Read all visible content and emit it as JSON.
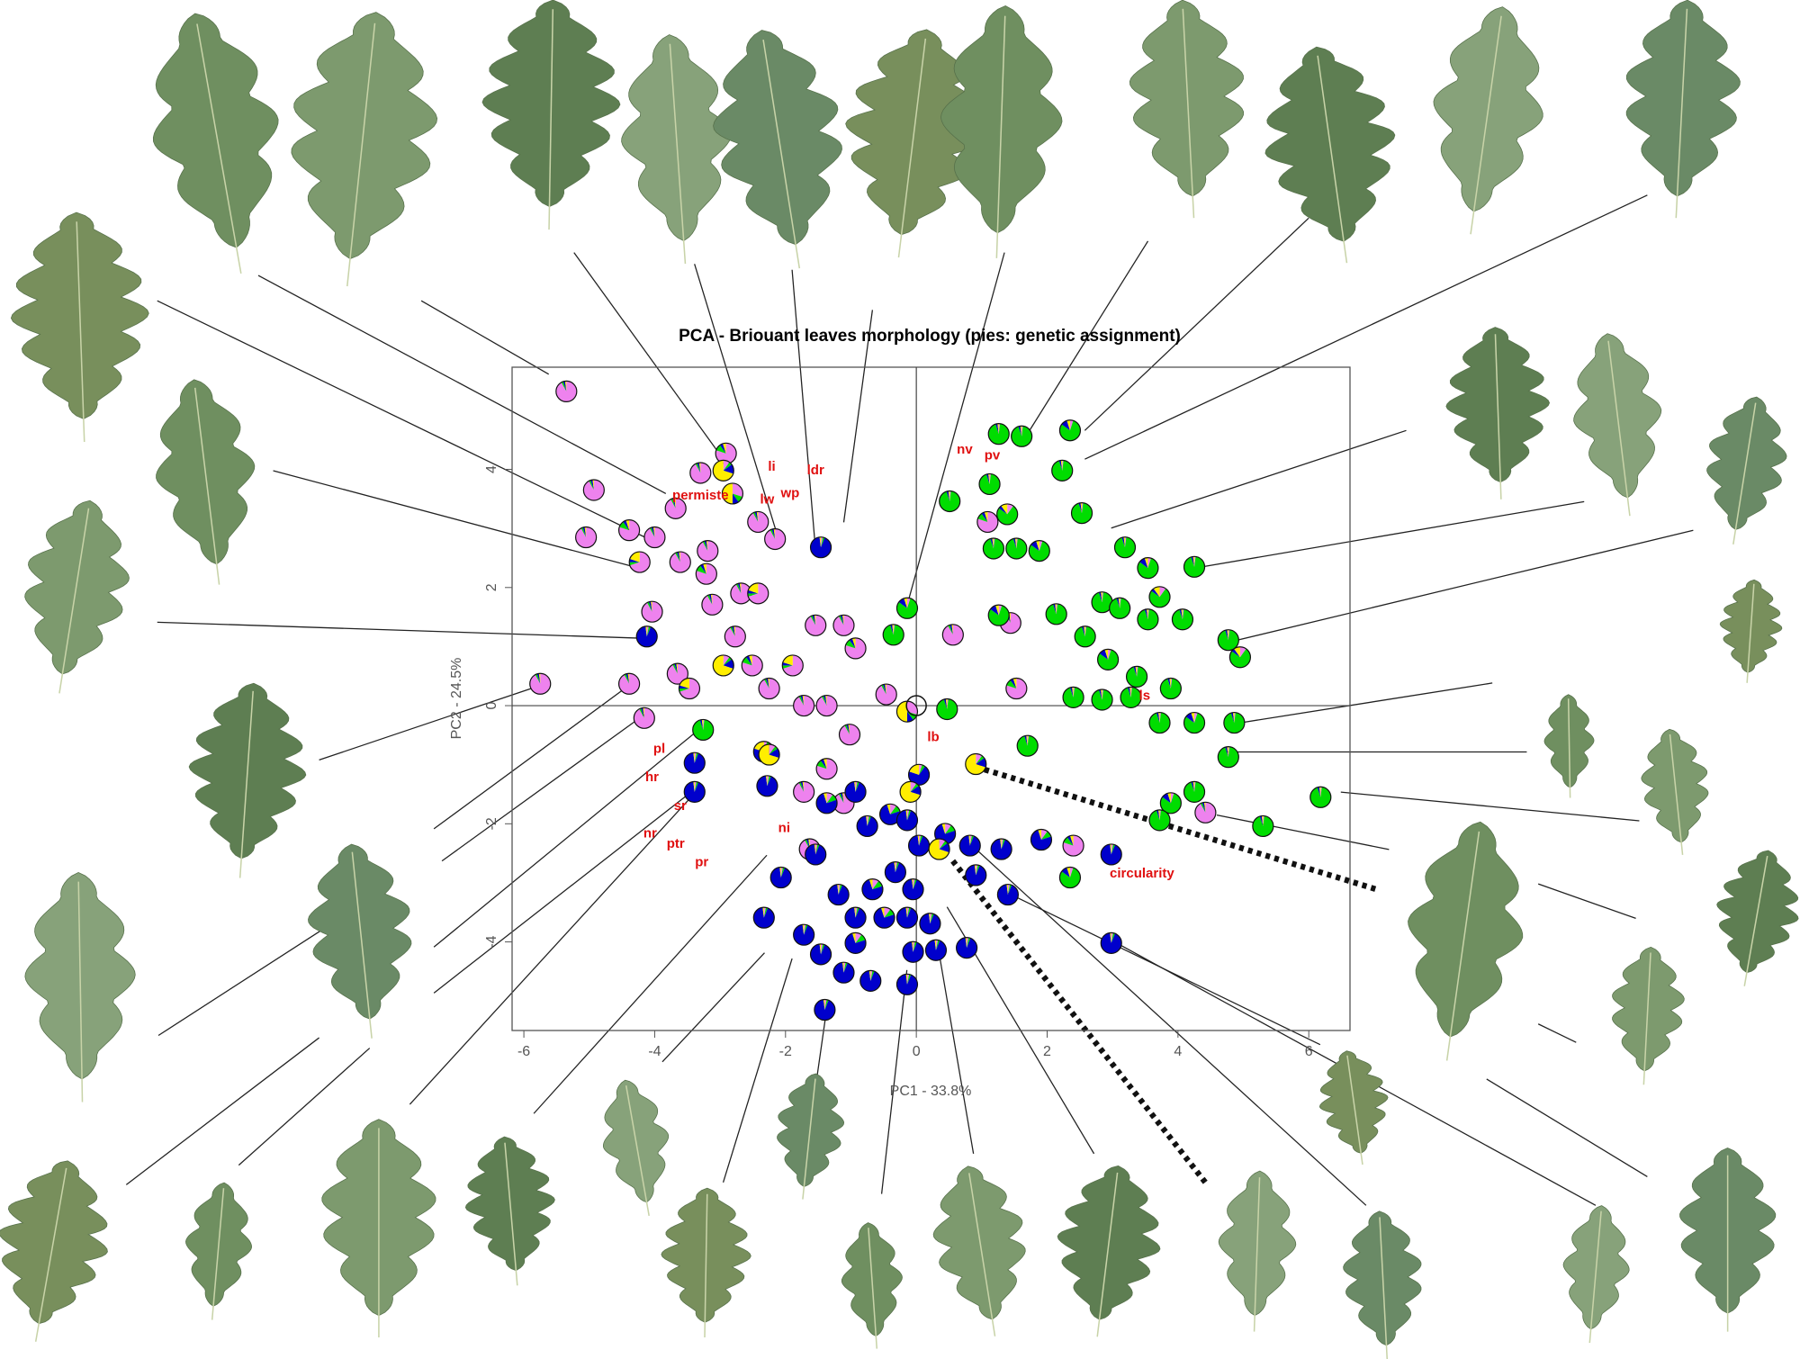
{
  "chart_data": {
    "type": "pie-scatter",
    "title": "PCA - Briouant leaves morphology (pies: genetic assignment)",
    "x_label": "PC1 - 33.8%",
    "y_label": "PC2 - 24.5%",
    "xlim": [
      -6.18,
      6.63
    ],
    "ylim": [
      -5.5,
      5.73
    ],
    "xticks": [
      -6,
      -4,
      -2,
      0,
      2,
      4,
      6
    ],
    "yticks": [
      -4,
      -2,
      0,
      2,
      4
    ],
    "pie_colors": [
      "#ee82ee",
      "#00dd00",
      "#0000cc",
      "#ffee00"
    ],
    "x": [
      -5.35,
      -4.93,
      -5.05,
      -4.39,
      -4.0,
      -3.68,
      -4.04,
      -4.23,
      -3.61,
      -3.19,
      -3.21,
      -3.12,
      -2.68,
      -2.42,
      -3.3,
      -2.91,
      -2.42,
      -2.16,
      -3.65,
      -3.47,
      -2.77,
      -2.51,
      -2.25,
      -1.89,
      -1.54,
      -1.11,
      -0.93,
      -1.72,
      -1.37,
      -1.02,
      -0.46,
      0.56,
      -5.75,
      -4.39,
      -4.16,
      1.53,
      1.44,
      1.09,
      4.42,
      2.4,
      -1.72,
      -1.37,
      -1.63,
      -1.11,
      1.26,
      1.61,
      2.35,
      2.23,
      0.51,
      1.12,
      1.39,
      1.18,
      1.53,
      1.88,
      2.53,
      3.19,
      3.54,
      4.25,
      4.07,
      4.77,
      4.95,
      3.54,
      2.84,
      2.58,
      2.93,
      3.37,
      3.89,
      3.72,
      4.25,
      4.86,
      4.77,
      6.18,
      5.3,
      4.25,
      3.89,
      3.72,
      2.4,
      2.84,
      3.28,
      1.7,
      1.26,
      2.14,
      3.11,
      3.72,
      -0.14,
      -0.35,
      -3.26,
      0.47,
      2.35,
      -4.12,
      -3.39,
      -3.39,
      -2.33,
      -2.28,
      -1.37,
      -0.93,
      -1.54,
      -0.75,
      -0.4,
      0.04,
      -0.14,
      0.04,
      0.44,
      0.82,
      1.3,
      1.91,
      2.98,
      0.91,
      -1.46,
      1.4,
      2.98,
      -0.32,
      -0.67,
      -0.05,
      -1.19,
      -2.07,
      -2.33,
      -1.72,
      -0.93,
      -0.49,
      -0.14,
      0.21,
      0.3,
      0.77,
      -0.05,
      -1.46,
      -0.93,
      -1.11,
      -0.7,
      -0.14,
      -1.4,
      -2.95,
      -2.81,
      -2.95,
      -2.25,
      -0.09,
      0.91,
      0.35,
      -0.14
    ],
    "y": [
      5.32,
      3.65,
      2.85,
      2.97,
      2.85,
      3.34,
      1.59,
      2.43,
      2.43,
      2.62,
      2.23,
      1.71,
      1.9,
      1.9,
      3.94,
      4.27,
      3.11,
      2.82,
      0.54,
      0.29,
      1.17,
      0.68,
      0.29,
      0.68,
      1.36,
      1.36,
      0.97,
      0,
      0,
      -0.49,
      0.19,
      1.2,
      0.37,
      0.37,
      -0.21,
      0.29,
      1.4,
      3.11,
      -1.81,
      -2.37,
      -1.46,
      -1.07,
      -2.43,
      -1.65,
      4.6,
      4.56,
      4.66,
      3.98,
      3.46,
      3.75,
      3.24,
      2.66,
      2.66,
      2.62,
      3.26,
      2.68,
      2.33,
      2.35,
      1.46,
      1.11,
      0.82,
      1.46,
      1.75,
      1.17,
      0.78,
      0.49,
      0.29,
      -0.29,
      -0.29,
      -0.29,
      -0.87,
      -1.55,
      -2.04,
      -1.46,
      -1.65,
      -1.94,
      0.14,
      0.1,
      0.14,
      -0.68,
      1.53,
      1.55,
      1.65,
      1.84,
      1.65,
      1.2,
      -0.41,
      -0.06,
      -2.91,
      1.17,
      -0.97,
      -1.46,
      -0.78,
      -1.36,
      -1.65,
      -1.46,
      -2.52,
      -2.04,
      -1.84,
      -1.17,
      -1.94,
      -2.37,
      -2.17,
      -2.37,
      -2.43,
      -2.27,
      -2.52,
      -2.87,
      2.68,
      -3.2,
      -4.02,
      -2.82,
      -3.11,
      -3.11,
      -3.2,
      -2.91,
      -3.59,
      -3.88,
      -3.59,
      -3.59,
      -3.59,
      -3.69,
      -4.14,
      -4.1,
      -4.17,
      -4.21,
      -4.02,
      -4.52,
      -4.66,
      -4.72,
      -5.15,
      3.98,
      3.59,
      0.68,
      -0.83,
      -1.46,
      -0.99,
      -2.43,
      -0.1
    ],
    "pies": [
      [
        0.92,
        0.03,
        0.03,
        0.02
      ],
      [
        0.92,
        0.03,
        0.03,
        0.02
      ],
      [
        0.92,
        0.03,
        0.03,
        0.02
      ],
      [
        0.8,
        0.1,
        0.05,
        0.05
      ],
      [
        0.92,
        0.03,
        0.03,
        0.02
      ],
      [
        0.92,
        0.03,
        0.03,
        0.02
      ],
      [
        0.92,
        0.03,
        0.03,
        0.02
      ],
      [
        0.7,
        0.05,
        0.05,
        0.2
      ],
      [
        0.92,
        0.03,
        0.03,
        0.02
      ],
      [
        0.92,
        0.03,
        0.03,
        0.02
      ],
      [
        0.8,
        0.1,
        0.05,
        0.05
      ],
      [
        0.92,
        0.03,
        0.03,
        0.02
      ],
      [
        0.92,
        0.03,
        0.03,
        0.02
      ],
      [
        0.7,
        0.05,
        0.05,
        0.2
      ],
      [
        0.92,
        0.03,
        0.03,
        0.02
      ],
      [
        0.8,
        0.1,
        0.05,
        0.05
      ],
      [
        0.92,
        0.03,
        0.03,
        0.02
      ],
      [
        0.92,
        0.03,
        0.03,
        0.02
      ],
      [
        0.92,
        0.03,
        0.03,
        0.02
      ],
      [
        0.7,
        0.05,
        0.05,
        0.2
      ],
      [
        0.92,
        0.03,
        0.03,
        0.02
      ],
      [
        0.8,
        0.1,
        0.05,
        0.05
      ],
      [
        0.92,
        0.03,
        0.03,
        0.02
      ],
      [
        0.7,
        0.05,
        0.05,
        0.2
      ],
      [
        0.92,
        0.03,
        0.03,
        0.02
      ],
      [
        0.92,
        0.03,
        0.03,
        0.02
      ],
      [
        0.8,
        0.1,
        0.05,
        0.05
      ],
      [
        0.92,
        0.03,
        0.03,
        0.02
      ],
      [
        0.92,
        0.03,
        0.03,
        0.02
      ],
      [
        0.92,
        0.03,
        0.03,
        0.02
      ],
      [
        0.92,
        0.03,
        0.03,
        0.02
      ],
      [
        0.92,
        0.03,
        0.03,
        0.02
      ],
      [
        0.92,
        0.03,
        0.03,
        0.02
      ],
      [
        0.92,
        0.03,
        0.03,
        0.02
      ],
      [
        0.92,
        0.03,
        0.03,
        0.02
      ],
      [
        0.8,
        0.1,
        0.05,
        0.05
      ],
      [
        0.92,
        0.03,
        0.03,
        0.02
      ],
      [
        0.8,
        0.1,
        0.05,
        0.05
      ],
      [
        0.92,
        0.03,
        0.03,
        0.02
      ],
      [
        0.8,
        0.1,
        0.05,
        0.05
      ],
      [
        0.92,
        0.03,
        0.03,
        0.02
      ],
      [
        0.8,
        0.1,
        0.05,
        0.05
      ],
      [
        0.92,
        0.03,
        0.03,
        0.02
      ],
      [
        0.92,
        0.03,
        0.03,
        0.02
      ],
      [
        0.02,
        0.93,
        0.03,
        0.02
      ],
      [
        0.02,
        0.93,
        0.03,
        0.02
      ],
      [
        0.05,
        0.8,
        0.1,
        0.05
      ],
      [
        0.02,
        0.93,
        0.03,
        0.02
      ],
      [
        0.02,
        0.93,
        0.03,
        0.02
      ],
      [
        0.02,
        0.93,
        0.03,
        0.02
      ],
      [
        0.1,
        0.75,
        0.05,
        0.1
      ],
      [
        0.02,
        0.93,
        0.03,
        0.02
      ],
      [
        0.02,
        0.93,
        0.03,
        0.02
      ],
      [
        0.05,
        0.8,
        0.1,
        0.05
      ],
      [
        0.02,
        0.93,
        0.03,
        0.02
      ],
      [
        0.02,
        0.93,
        0.03,
        0.02
      ],
      [
        0.05,
        0.8,
        0.1,
        0.05
      ],
      [
        0.02,
        0.93,
        0.03,
        0.02
      ],
      [
        0.02,
        0.93,
        0.03,
        0.02
      ],
      [
        0.02,
        0.93,
        0.03,
        0.02
      ],
      [
        0.1,
        0.75,
        0.05,
        0.1
      ],
      [
        0.02,
        0.93,
        0.03,
        0.02
      ],
      [
        0.02,
        0.93,
        0.03,
        0.02
      ],
      [
        0.02,
        0.93,
        0.03,
        0.02
      ],
      [
        0.05,
        0.8,
        0.1,
        0.05
      ],
      [
        0.02,
        0.93,
        0.03,
        0.02
      ],
      [
        0.02,
        0.93,
        0.03,
        0.02
      ],
      [
        0.02,
        0.93,
        0.03,
        0.02
      ],
      [
        0.05,
        0.8,
        0.1,
        0.05
      ],
      [
        0.02,
        0.93,
        0.03,
        0.02
      ],
      [
        0.02,
        0.93,
        0.03,
        0.02
      ],
      [
        0.02,
        0.93,
        0.03,
        0.02
      ],
      [
        0.02,
        0.93,
        0.03,
        0.02
      ],
      [
        0.02,
        0.93,
        0.03,
        0.02
      ],
      [
        0.05,
        0.8,
        0.1,
        0.05
      ],
      [
        0.02,
        0.93,
        0.03,
        0.02
      ],
      [
        0.02,
        0.93,
        0.03,
        0.02
      ],
      [
        0.02,
        0.93,
        0.03,
        0.02
      ],
      [
        0.02,
        0.93,
        0.03,
        0.02
      ],
      [
        0.02,
        0.93,
        0.03,
        0.02
      ],
      [
        0.05,
        0.8,
        0.1,
        0.05
      ],
      [
        0.02,
        0.93,
        0.03,
        0.02
      ],
      [
        0.02,
        0.93,
        0.03,
        0.02
      ],
      [
        0.1,
        0.75,
        0.05,
        0.1
      ],
      [
        0.05,
        0.8,
        0.1,
        0.05
      ],
      [
        0.02,
        0.93,
        0.03,
        0.02
      ],
      [
        0.02,
        0.93,
        0.03,
        0.02
      ],
      [
        0.02,
        0.93,
        0.03,
        0.02
      ],
      [
        0.05,
        0.8,
        0.1,
        0.05
      ],
      [
        0.03,
        0.03,
        0.92,
        0.02
      ],
      [
        0.03,
        0.03,
        0.92,
        0.02
      ],
      [
        0.03,
        0.03,
        0.92,
        0.02
      ],
      [
        0.05,
        0.05,
        0.7,
        0.2
      ],
      [
        0.03,
        0.03,
        0.92,
        0.02
      ],
      [
        0.1,
        0.1,
        0.75,
        0.05
      ],
      [
        0.03,
        0.03,
        0.92,
        0.02
      ],
      [
        0.03,
        0.03,
        0.92,
        0.02
      ],
      [
        0.03,
        0.03,
        0.92,
        0.02
      ],
      [
        0.1,
        0.1,
        0.75,
        0.05
      ],
      [
        0.05,
        0.05,
        0.7,
        0.2
      ],
      [
        0.03,
        0.03,
        0.92,
        0.02
      ],
      [
        0.03,
        0.03,
        0.92,
        0.02
      ],
      [
        0.1,
        0.1,
        0.75,
        0.05
      ],
      [
        0.03,
        0.03,
        0.92,
        0.02
      ],
      [
        0.03,
        0.03,
        0.92,
        0.02
      ],
      [
        0.1,
        0.1,
        0.75,
        0.05
      ],
      [
        0.03,
        0.03,
        0.92,
        0.02
      ],
      [
        0.03,
        0.03,
        0.92,
        0.02
      ],
      [
        0.03,
        0.03,
        0.92,
        0.02
      ],
      [
        0.03,
        0.03,
        0.92,
        0.02
      ],
      [
        0.03,
        0.03,
        0.92,
        0.02
      ],
      [
        0.03,
        0.03,
        0.92,
        0.02
      ],
      [
        0.1,
        0.1,
        0.75,
        0.05
      ],
      [
        0.03,
        0.03,
        0.92,
        0.02
      ],
      [
        0.03,
        0.03,
        0.92,
        0.02
      ],
      [
        0.03,
        0.03,
        0.92,
        0.02
      ],
      [
        0.03,
        0.03,
        0.92,
        0.02
      ],
      [
        0.03,
        0.03,
        0.92,
        0.02
      ],
      [
        0.03,
        0.03,
        0.92,
        0.02
      ],
      [
        0.1,
        0.1,
        0.75,
        0.05
      ],
      [
        0.03,
        0.03,
        0.92,
        0.02
      ],
      [
        0.03,
        0.03,
        0.92,
        0.02
      ],
      [
        0.03,
        0.03,
        0.92,
        0.02
      ],
      [
        0.03,
        0.03,
        0.92,
        0.02
      ],
      [
        0.03,
        0.03,
        0.92,
        0.02
      ],
      [
        0.03,
        0.03,
        0.92,
        0.02
      ],
      [
        0.1,
        0.1,
        0.75,
        0.05
      ],
      [
        0.03,
        0.03,
        0.92,
        0.02
      ],
      [
        0.03,
        0.03,
        0.92,
        0.02
      ],
      [
        0.03,
        0.03,
        0.92,
        0.02
      ],
      [
        0.03,
        0.03,
        0.92,
        0.02
      ],
      [
        0.1,
        0.05,
        0.15,
        0.7
      ],
      [
        0.3,
        0.1,
        0.1,
        0.5
      ],
      [
        0.1,
        0.05,
        0.15,
        0.7
      ],
      [
        0.1,
        0.05,
        0.15,
        0.7
      ],
      [
        0.1,
        0.05,
        0.15,
        0.7
      ],
      [
        0.1,
        0.05,
        0.15,
        0.7
      ],
      [
        0.1,
        0.05,
        0.15,
        0.7
      ],
      [
        0.3,
        0.1,
        0.1,
        0.5
      ]
    ],
    "annotations": [
      {
        "text": "permiste",
        "x": -3.3,
        "y": 3.55
      },
      {
        "text": "li",
        "x": -2.21,
        "y": 4.04
      },
      {
        "text": "ldr",
        "x": -1.54,
        "y": 3.98
      },
      {
        "text": "lw",
        "x": -2.28,
        "y": 3.48
      },
      {
        "text": "wp",
        "x": -1.93,
        "y": 3.59
      },
      {
        "text": "nv",
        "x": 0.74,
        "y": 4.33
      },
      {
        "text": "pv",
        "x": 1.16,
        "y": 4.23
      },
      {
        "text": "pl",
        "x": -3.93,
        "y": -0.74
      },
      {
        "text": "hr",
        "x": -4.04,
        "y": -1.22
      },
      {
        "text": "sr",
        "x": -3.61,
        "y": -1.71
      },
      {
        "text": "nr",
        "x": -4.07,
        "y": -2.17
      },
      {
        "text": "ptr",
        "x": -3.68,
        "y": -2.35
      },
      {
        "text": "pr",
        "x": -3.28,
        "y": -2.66
      },
      {
        "text": "ni",
        "x": -2.02,
        "y": -2.08
      },
      {
        "text": "ls",
        "x": 3.49,
        "y": 0.16
      },
      {
        "text": "lb",
        "x": 0.26,
        "y": -0.54
      },
      {
        "text": "circularity",
        "x": 3.45,
        "y": -2.85
      }
    ]
  }
}
